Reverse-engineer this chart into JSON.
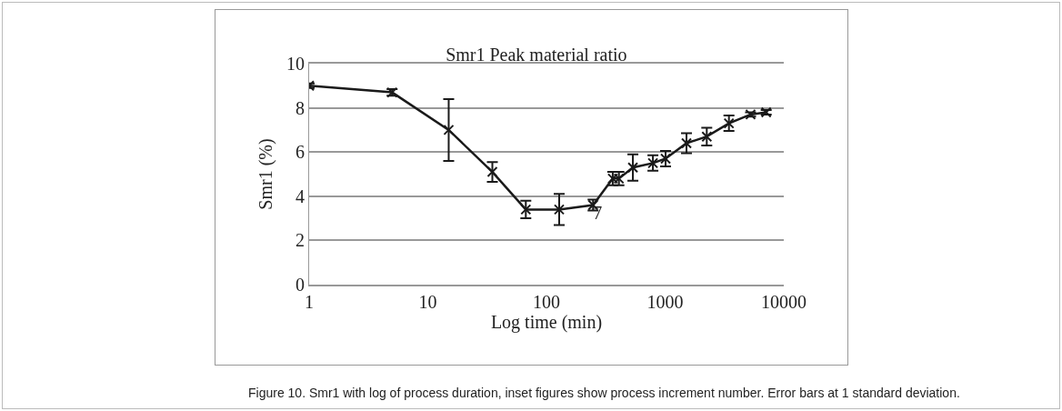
{
  "chart_data": {
    "type": "line",
    "title": "Smr1 Peak material ratio",
    "xlabel": "Log time (min)",
    "ylabel": "Smr1 (%)",
    "x": [
      1,
      5,
      15,
      35,
      67,
      128,
      247,
      362,
      408,
      535,
      789,
      1009,
      1514,
      2244,
      3450,
      5250,
      7110
    ],
    "series": [
      {
        "color": "#1a1a1a",
        "values": [
          9.0,
          8.7,
          7.0,
          5.1,
          3.4,
          3.4,
          3.6,
          4.8,
          4.8,
          5.3,
          5.5,
          5.7,
          6.4,
          6.7,
          7.3,
          7.7,
          7.8
        ],
        "errors": [
          0.1,
          0.15,
          1.4,
          0.45,
          0.4,
          0.7,
          0.25,
          0.3,
          0.3,
          0.6,
          0.35,
          0.35,
          0.45,
          0.4,
          0.35,
          0.1,
          0.1
        ]
      }
    ],
    "xlim": [
      1,
      10000
    ],
    "xticks": [
      1,
      10,
      100,
      1000,
      10000
    ],
    "ylim": [
      0,
      10
    ],
    "yticks": [
      0,
      2,
      4,
      6,
      8,
      10
    ],
    "log": "x",
    "grid": "y",
    "marker": "cross",
    "line_style": "solid",
    "annotations": [
      {
        "text": "7",
        "x": 247,
        "y": 3.6
      },
      "Figure 10. Smr1 with log of process duration, inset figures show process increment number. Error bars at 1 standard deviation."
    ]
  }
}
